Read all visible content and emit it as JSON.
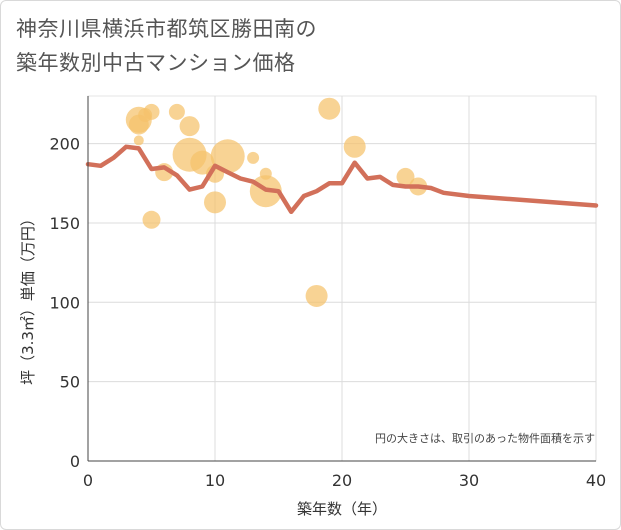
{
  "title_line1": "神奈川県横浜市都筑区勝田南の",
  "title_line2": "築年数別中古マンション価格",
  "chart_data": {
    "type": "scatter",
    "xlabel": "築年数（年）",
    "ylabel": "坪（3.3㎡）単価（万円）",
    "xlim": [
      0,
      40
    ],
    "ylim": [
      0,
      230
    ],
    "xticks": [
      0,
      10,
      20,
      30,
      40
    ],
    "yticks": [
      0,
      50,
      100,
      150,
      200
    ],
    "grid": true,
    "note": "円の大きさは、取引のあった物件面積を示す",
    "bubble_color": "#f5c26b",
    "line_color": "#d2705a",
    "bubbles": [
      {
        "x": 4,
        "y": 215,
        "s": 13
      },
      {
        "x": 4,
        "y": 212,
        "s": 10
      },
      {
        "x": 4.5,
        "y": 218,
        "s": 7
      },
      {
        "x": 5,
        "y": 220,
        "s": 8
      },
      {
        "x": 4,
        "y": 202,
        "s": 5
      },
      {
        "x": 5,
        "y": 152,
        "s": 9
      },
      {
        "x": 6,
        "y": 182,
        "s": 9
      },
      {
        "x": 7,
        "y": 220,
        "s": 8
      },
      {
        "x": 8,
        "y": 211,
        "s": 10
      },
      {
        "x": 8,
        "y": 193,
        "s": 17
      },
      {
        "x": 9,
        "y": 188,
        "s": 12
      },
      {
        "x": 10,
        "y": 181,
        "s": 9
      },
      {
        "x": 10,
        "y": 163,
        "s": 11
      },
      {
        "x": 11,
        "y": 192,
        "s": 17
      },
      {
        "x": 13,
        "y": 191,
        "s": 6
      },
      {
        "x": 14,
        "y": 181,
        "s": 6
      },
      {
        "x": 14,
        "y": 170,
        "s": 16
      },
      {
        "x": 18,
        "y": 104,
        "s": 11
      },
      {
        "x": 19,
        "y": 222,
        "s": 11
      },
      {
        "x": 21,
        "y": 198,
        "s": 11
      },
      {
        "x": 25,
        "y": 179,
        "s": 9
      },
      {
        "x": 26,
        "y": 173,
        "s": 9
      }
    ],
    "trend": {
      "x": [
        0,
        1,
        2,
        3,
        4,
        5,
        6,
        7,
        8,
        9,
        10,
        11,
        12,
        13,
        14,
        15,
        16,
        17,
        18,
        19,
        20,
        21,
        22,
        23,
        24,
        25,
        26,
        27,
        28,
        30,
        40
      ],
      "y": [
        187,
        186,
        191,
        198,
        197,
        184,
        185,
        180,
        171,
        173,
        186,
        182,
        178,
        176,
        171,
        170,
        157,
        167,
        170,
        175,
        175,
        188,
        178,
        179,
        174,
        173,
        173,
        172,
        169,
        167,
        161
      ]
    }
  }
}
